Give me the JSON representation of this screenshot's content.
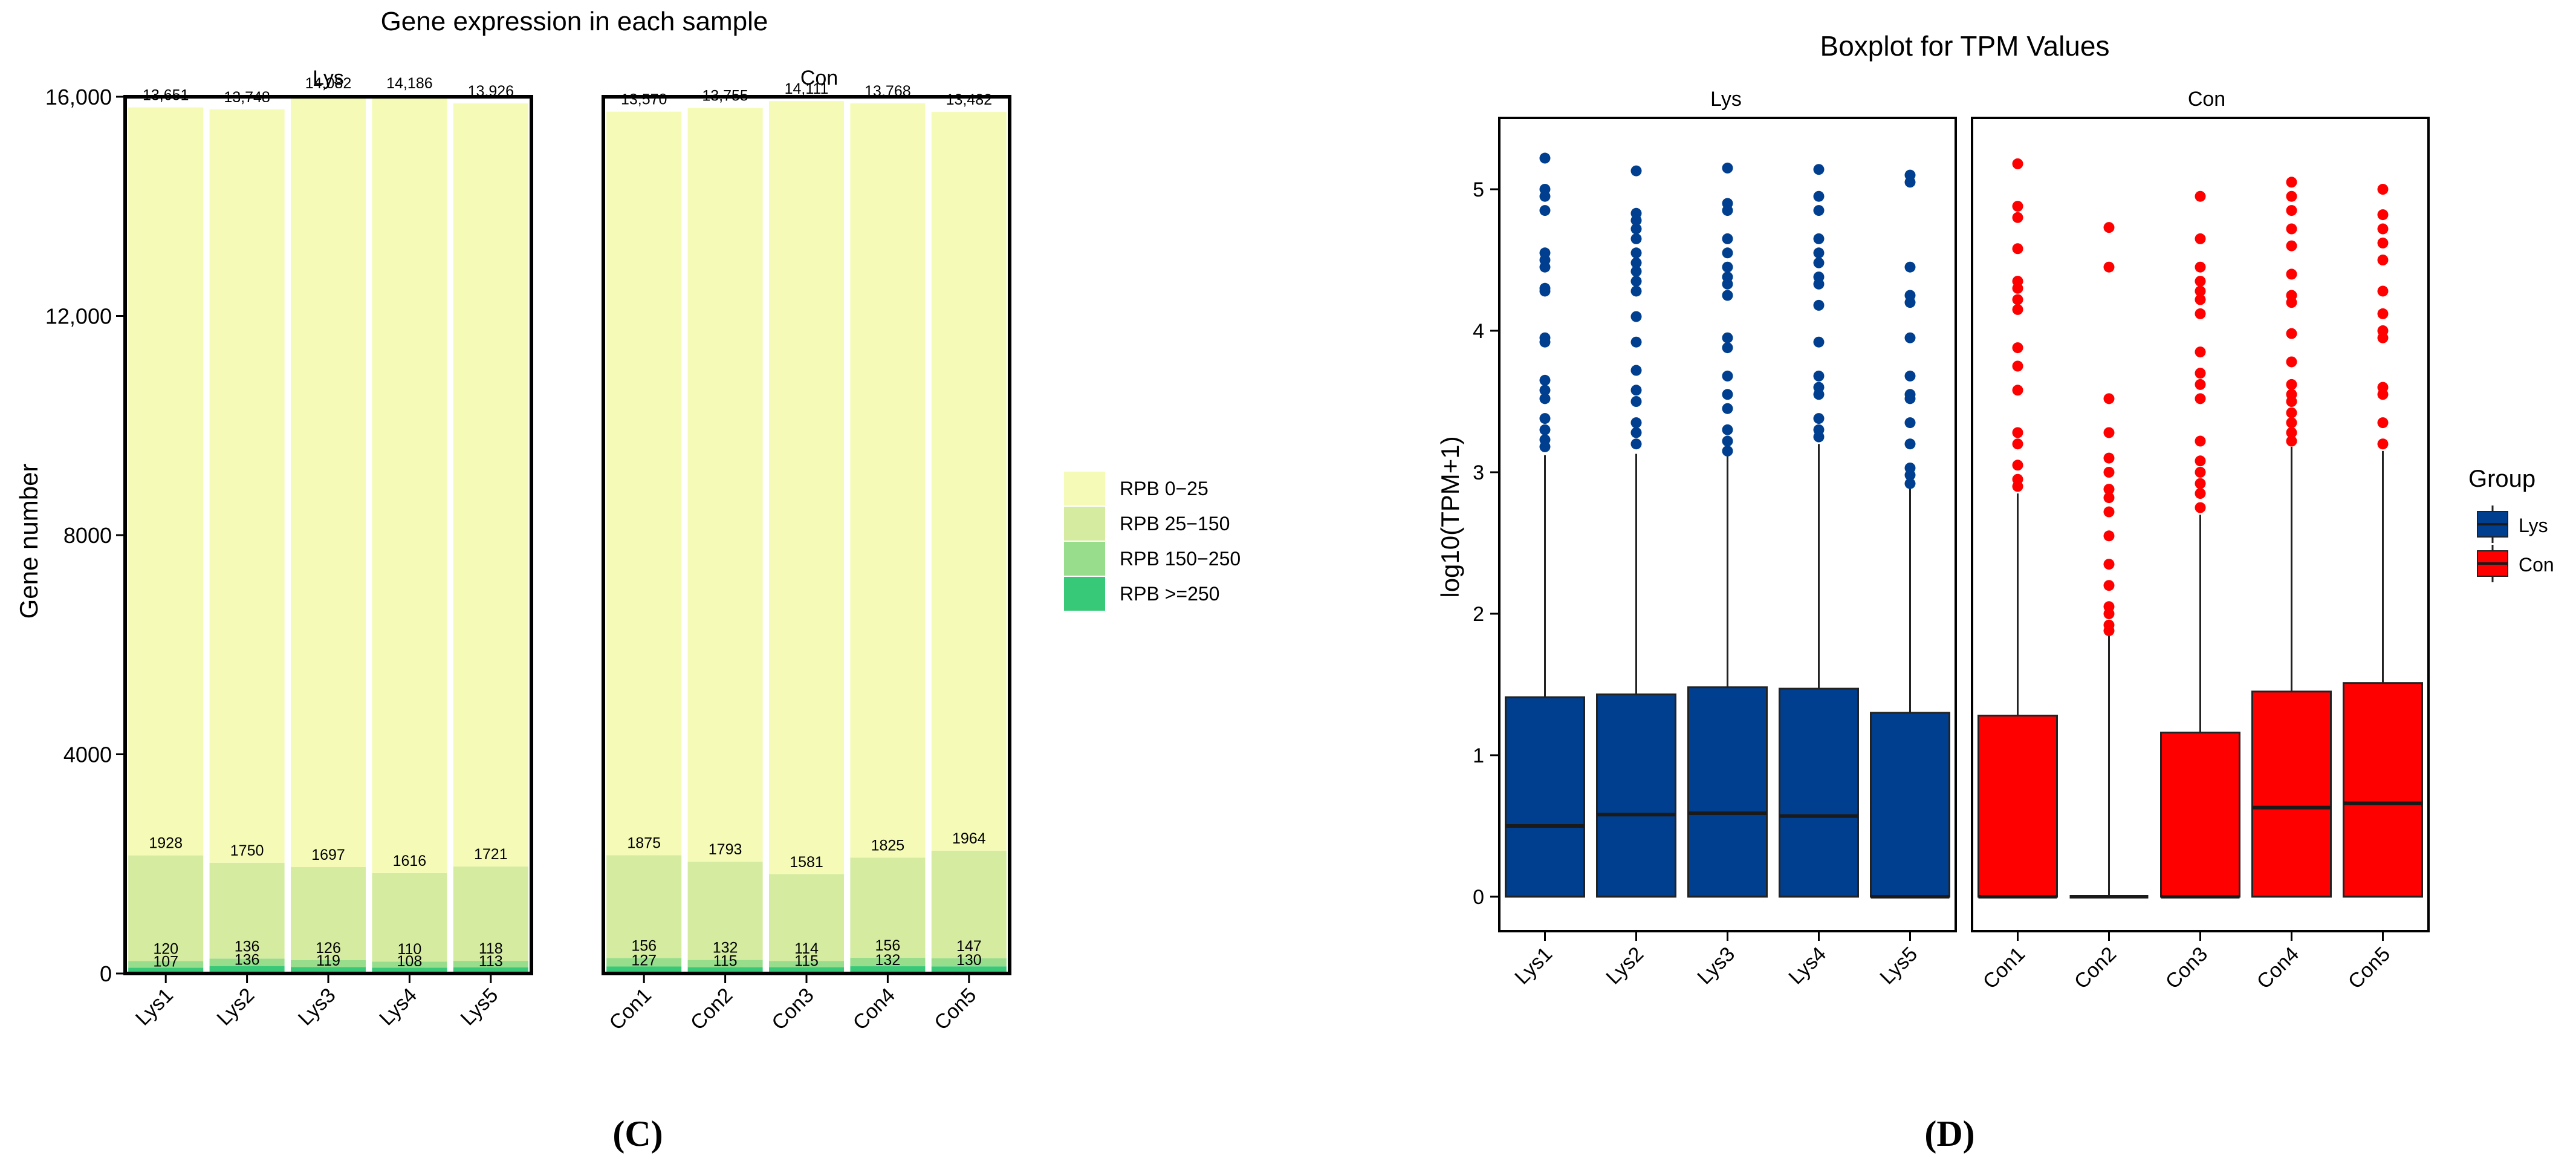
{
  "panels": {
    "left_caption": "(C)",
    "right_caption": "(D)"
  },
  "chart_data": [
    {
      "type": "bar",
      "stacked": true,
      "title": "Gene expression in each sample",
      "ylabel": "Gene number",
      "xlabel": "",
      "ylim": [
        0,
        16000
      ],
      "yticks": [
        0,
        4000,
        8000,
        12000,
        16000
      ],
      "ytick_labels": [
        "0",
        "4000",
        "8000",
        "12,000",
        "16,000"
      ],
      "grid": false,
      "legend_position": "right",
      "colors": [
        "#f5fbb6",
        "#d4eba0",
        "#97dd8c",
        "#37c977"
      ],
      "facets": [
        {
          "name": "Lys",
          "categories": [
            "Lys1",
            "Lys2",
            "Lys3",
            "Lys4",
            "Lys5"
          ],
          "series": [
            {
              "name": "RPB 0-25",
              "values": [
                13651,
                13748,
                14082,
                14186,
                13926
              ]
            },
            {
              "name": "RPB 25-150",
              "values": [
                1928,
                1750,
                1697,
                1616,
                1721
              ]
            },
            {
              "name": "RPB 150-250",
              "values": [
                120,
                136,
                126,
                110,
                118
              ]
            },
            {
              "name": "RPB >=250",
              "values": [
                107,
                136,
                119,
                108,
                113
              ]
            }
          ]
        },
        {
          "name": "Con",
          "categories": [
            "Con1",
            "Con2",
            "Con3",
            "Con4",
            "Con5"
          ],
          "series": [
            {
              "name": "RPB 0-25",
              "values": [
                13570,
                13755,
                14111,
                13768,
                13482
              ]
            },
            {
              "name": "RPB 25-150",
              "values": [
                1875,
                1793,
                1581,
                1825,
                1964
              ]
            },
            {
              "name": "RPB 150-250",
              "values": [
                156,
                132,
                114,
                156,
                147
              ]
            },
            {
              "name": "RPB >=250",
              "values": [
                127,
                115,
                115,
                132,
                130
              ]
            }
          ]
        }
      ],
      "legend": [
        "RPB 0−25",
        "RPB 25−150",
        "RPB 150−250",
        "RPB >=250"
      ]
    },
    {
      "type": "boxplot",
      "title": "Boxplot for TPM Values",
      "ylabel": "log10(TPM+1)",
      "xlabel": "",
      "ylim": [
        -0.25,
        5.5
      ],
      "yticks": [
        0,
        1,
        2,
        3,
        4,
        5
      ],
      "grid": false,
      "legend_title": "Group",
      "legend_position": "right",
      "legend": [
        "Lys",
        "Con"
      ],
      "colors": {
        "Lys": "#003f8f",
        "Con": "#ff0000"
      },
      "facets": [
        {
          "name": "Lys",
          "group": "Lys",
          "boxes": [
            {
              "label": "Lys1",
              "min": 0,
              "q1": 0,
              "median": 0.5,
              "q3": 1.41,
              "max": 3.12,
              "outliers": [
                3.18,
                3.23,
                3.3,
                3.38,
                3.52,
                3.58,
                3.65,
                3.92,
                3.95,
                4.28,
                4.3,
                4.45,
                4.5,
                4.55,
                4.85,
                4.95,
                5.0,
                5.22
              ]
            },
            {
              "label": "Lys2",
              "min": 0,
              "q1": 0,
              "median": 0.58,
              "q3": 1.43,
              "max": 3.13,
              "outliers": [
                3.2,
                3.28,
                3.35,
                3.5,
                3.58,
                3.72,
                3.92,
                4.1,
                4.28,
                4.35,
                4.42,
                4.48,
                4.55,
                4.65,
                4.72,
                4.78,
                4.83,
                5.13
              ]
            },
            {
              "label": "Lys3",
              "min": 0,
              "q1": 0,
              "median": 0.59,
              "q3": 1.48,
              "max": 3.12,
              "outliers": [
                3.15,
                3.22,
                3.3,
                3.45,
                3.55,
                3.68,
                3.88,
                3.95,
                4.25,
                4.33,
                4.38,
                4.45,
                4.55,
                4.65,
                4.85,
                4.9,
                5.15
              ]
            },
            {
              "label": "Lys4",
              "min": 0,
              "q1": 0,
              "median": 0.57,
              "q3": 1.47,
              "max": 3.2,
              "outliers": [
                3.25,
                3.3,
                3.38,
                3.55,
                3.6,
                3.68,
                3.92,
                4.18,
                4.33,
                4.38,
                4.48,
                4.55,
                4.65,
                4.85,
                4.95,
                5.14
              ]
            },
            {
              "label": "Lys5",
              "min": 0,
              "q1": 0,
              "median": 0.0,
              "q3": 1.3,
              "max": 2.9,
              "outliers": [
                2.92,
                2.98,
                3.03,
                3.2,
                3.35,
                3.52,
                3.55,
                3.68,
                3.95,
                4.2,
                4.25,
                4.45,
                5.05,
                5.1
              ]
            }
          ]
        },
        {
          "name": "Con",
          "group": "Con",
          "boxes": [
            {
              "label": "Con1",
              "min": 0,
              "q1": 0,
              "median": 0.0,
              "q3": 1.28,
              "max": 2.85,
              "outliers": [
                2.9,
                2.95,
                3.05,
                3.2,
                3.28,
                3.58,
                3.75,
                3.88,
                4.15,
                4.22,
                4.3,
                4.35,
                4.58,
                4.8,
                4.88,
                5.18
              ]
            },
            {
              "label": "Con2",
              "min": 0,
              "q1": 0,
              "median": 0.0,
              "q3": 0.0,
              "max": 1.85,
              "outliers": [
                1.88,
                1.92,
                2.0,
                2.05,
                2.2,
                2.35,
                2.55,
                2.72,
                2.82,
                2.88,
                3.0,
                3.1,
                3.28,
                3.52,
                4.45,
                4.73
              ]
            },
            {
              "label": "Con3",
              "min": 0,
              "q1": 0,
              "median": 0.0,
              "q3": 1.16,
              "max": 2.7,
              "outliers": [
                2.75,
                2.85,
                2.92,
                3.0,
                3.08,
                3.22,
                3.52,
                3.62,
                3.7,
                3.85,
                4.12,
                4.22,
                4.28,
                4.35,
                4.45,
                4.65,
                4.95
              ]
            },
            {
              "label": "Con4",
              "min": 0,
              "q1": 0,
              "median": 0.63,
              "q3": 1.45,
              "max": 3.18,
              "outliers": [
                3.22,
                3.28,
                3.35,
                3.42,
                3.5,
                3.55,
                3.62,
                3.78,
                3.98,
                4.2,
                4.25,
                4.4,
                4.6,
                4.72,
                4.85,
                4.95,
                5.05
              ]
            },
            {
              "label": "Con5",
              "min": 0,
              "q1": 0,
              "median": 0.66,
              "q3": 1.51,
              "max": 3.15,
              "outliers": [
                3.2,
                3.35,
                3.55,
                3.6,
                3.95,
                4.0,
                4.12,
                4.28,
                4.5,
                4.62,
                4.72,
                4.82,
                5.0
              ]
            }
          ]
        }
      ]
    }
  ]
}
